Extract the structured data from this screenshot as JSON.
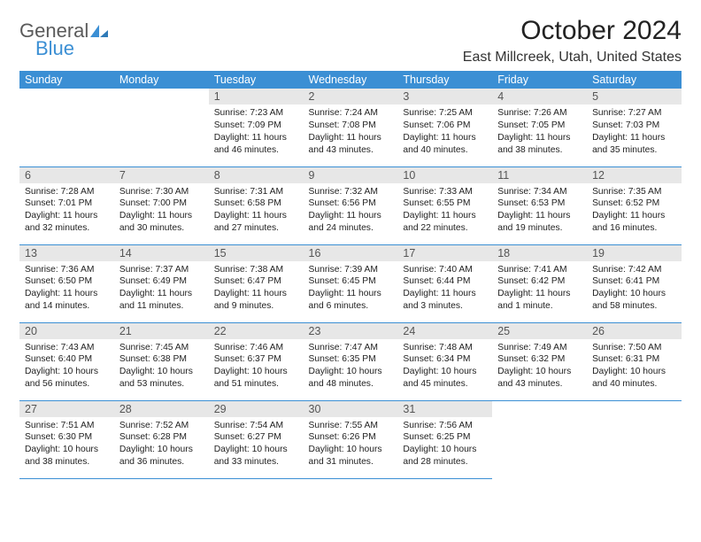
{
  "brand": {
    "line1": "General",
    "line2": "Blue"
  },
  "header": {
    "month_title": "October 2024",
    "location": "East Millcreek, Utah, United States"
  },
  "colors": {
    "accent": "#3b8fd4",
    "header_bg": "#3b8fd4",
    "header_text": "#ffffff",
    "daynum_bg": "#e7e7e7",
    "daynum_text": "#555555",
    "body_text": "#222222",
    "row_divider": "#3b8fd4",
    "logo_gray": "#5a5a5a"
  },
  "typography": {
    "title_fontsize": 30,
    "location_fontsize": 16,
    "header_fontsize": 12.5,
    "daynum_fontsize": 12.5,
    "body_fontsize": 10.3,
    "logo_fontsize": 22
  },
  "calendar": {
    "columns": [
      "Sunday",
      "Monday",
      "Tuesday",
      "Wednesday",
      "Thursday",
      "Friday",
      "Saturday"
    ],
    "first_weekday_index": 2,
    "days": [
      {
        "n": 1,
        "sunrise": "7:23 AM",
        "sunset": "7:09 PM",
        "daylight": "11 hours and 46 minutes."
      },
      {
        "n": 2,
        "sunrise": "7:24 AM",
        "sunset": "7:08 PM",
        "daylight": "11 hours and 43 minutes."
      },
      {
        "n": 3,
        "sunrise": "7:25 AM",
        "sunset": "7:06 PM",
        "daylight": "11 hours and 40 minutes."
      },
      {
        "n": 4,
        "sunrise": "7:26 AM",
        "sunset": "7:05 PM",
        "daylight": "11 hours and 38 minutes."
      },
      {
        "n": 5,
        "sunrise": "7:27 AM",
        "sunset": "7:03 PM",
        "daylight": "11 hours and 35 minutes."
      },
      {
        "n": 6,
        "sunrise": "7:28 AM",
        "sunset": "7:01 PM",
        "daylight": "11 hours and 32 minutes."
      },
      {
        "n": 7,
        "sunrise": "7:30 AM",
        "sunset": "7:00 PM",
        "daylight": "11 hours and 30 minutes."
      },
      {
        "n": 8,
        "sunrise": "7:31 AM",
        "sunset": "6:58 PM",
        "daylight": "11 hours and 27 minutes."
      },
      {
        "n": 9,
        "sunrise": "7:32 AM",
        "sunset": "6:56 PM",
        "daylight": "11 hours and 24 minutes."
      },
      {
        "n": 10,
        "sunrise": "7:33 AM",
        "sunset": "6:55 PM",
        "daylight": "11 hours and 22 minutes."
      },
      {
        "n": 11,
        "sunrise": "7:34 AM",
        "sunset": "6:53 PM",
        "daylight": "11 hours and 19 minutes."
      },
      {
        "n": 12,
        "sunrise": "7:35 AM",
        "sunset": "6:52 PM",
        "daylight": "11 hours and 16 minutes."
      },
      {
        "n": 13,
        "sunrise": "7:36 AM",
        "sunset": "6:50 PM",
        "daylight": "11 hours and 14 minutes."
      },
      {
        "n": 14,
        "sunrise": "7:37 AM",
        "sunset": "6:49 PM",
        "daylight": "11 hours and 11 minutes."
      },
      {
        "n": 15,
        "sunrise": "7:38 AM",
        "sunset": "6:47 PM",
        "daylight": "11 hours and 9 minutes."
      },
      {
        "n": 16,
        "sunrise": "7:39 AM",
        "sunset": "6:45 PM",
        "daylight": "11 hours and 6 minutes."
      },
      {
        "n": 17,
        "sunrise": "7:40 AM",
        "sunset": "6:44 PM",
        "daylight": "11 hours and 3 minutes."
      },
      {
        "n": 18,
        "sunrise": "7:41 AM",
        "sunset": "6:42 PM",
        "daylight": "11 hours and 1 minute."
      },
      {
        "n": 19,
        "sunrise": "7:42 AM",
        "sunset": "6:41 PM",
        "daylight": "10 hours and 58 minutes."
      },
      {
        "n": 20,
        "sunrise": "7:43 AM",
        "sunset": "6:40 PM",
        "daylight": "10 hours and 56 minutes."
      },
      {
        "n": 21,
        "sunrise": "7:45 AM",
        "sunset": "6:38 PM",
        "daylight": "10 hours and 53 minutes."
      },
      {
        "n": 22,
        "sunrise": "7:46 AM",
        "sunset": "6:37 PM",
        "daylight": "10 hours and 51 minutes."
      },
      {
        "n": 23,
        "sunrise": "7:47 AM",
        "sunset": "6:35 PM",
        "daylight": "10 hours and 48 minutes."
      },
      {
        "n": 24,
        "sunrise": "7:48 AM",
        "sunset": "6:34 PM",
        "daylight": "10 hours and 45 minutes."
      },
      {
        "n": 25,
        "sunrise": "7:49 AM",
        "sunset": "6:32 PM",
        "daylight": "10 hours and 43 minutes."
      },
      {
        "n": 26,
        "sunrise": "7:50 AM",
        "sunset": "6:31 PM",
        "daylight": "10 hours and 40 minutes."
      },
      {
        "n": 27,
        "sunrise": "7:51 AM",
        "sunset": "6:30 PM",
        "daylight": "10 hours and 38 minutes."
      },
      {
        "n": 28,
        "sunrise": "7:52 AM",
        "sunset": "6:28 PM",
        "daylight": "10 hours and 36 minutes."
      },
      {
        "n": 29,
        "sunrise": "7:54 AM",
        "sunset": "6:27 PM",
        "daylight": "10 hours and 33 minutes."
      },
      {
        "n": 30,
        "sunrise": "7:55 AM",
        "sunset": "6:26 PM",
        "daylight": "10 hours and 31 minutes."
      },
      {
        "n": 31,
        "sunrise": "7:56 AM",
        "sunset": "6:25 PM",
        "daylight": "10 hours and 28 minutes."
      }
    ],
    "labels": {
      "sunrise": "Sunrise:",
      "sunset": "Sunset:",
      "daylight": "Daylight:"
    }
  }
}
